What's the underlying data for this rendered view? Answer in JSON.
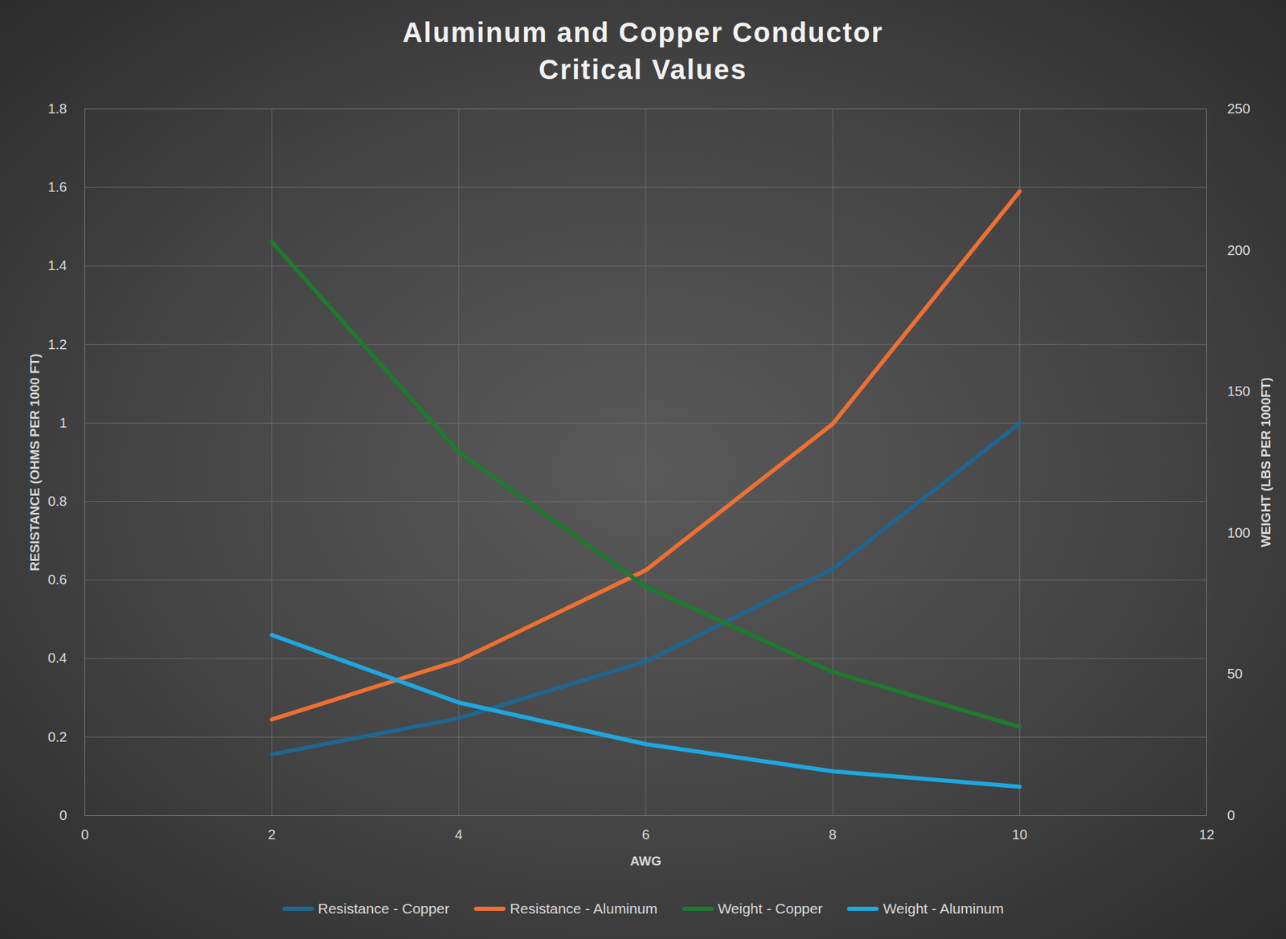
{
  "chart_data": {
    "type": "line",
    "title": "Aluminum and Copper Conductor\nCritical Values",
    "x": [
      2,
      4,
      6,
      8,
      10
    ],
    "xlim": [
      0,
      12
    ],
    "xticks": [
      0,
      2,
      4,
      6,
      8,
      10,
      12
    ],
    "xlabel": "AWG",
    "ylabel": "RESISTANCE (OHMS PER 1000 FT)",
    "ylim": [
      0,
      1.8
    ],
    "yticks": [
      0,
      0.2,
      0.4,
      0.6,
      0.8,
      1,
      1.2,
      1.4,
      1.6,
      1.8
    ],
    "y2label": "WEIGHT (LBS PER 1000FT)",
    "y2lim": [
      0,
      250
    ],
    "y2ticks": [
      0,
      50,
      100,
      150,
      200,
      250
    ],
    "grid": true,
    "legend": "bottom",
    "series": [
      {
        "name": "Resistance - Copper",
        "color": "#1f6690",
        "values": [
          0.156,
          0.248,
          0.393,
          0.628,
          0.999
        ]
      },
      {
        "name": "Resistance - Aluminum",
        "color": "#ed7032",
        "values": [
          0.245,
          0.395,
          0.625,
          0.998,
          1.59
        ]
      },
      {
        "name": "Weight - Copper",
        "color": "#1e7a2e",
        "values": [
          203,
          128.6,
          81,
          50.8,
          31.4
        ],
        "axis": "y2"
      },
      {
        "name": "Weight - Aluminum",
        "color": "#1ea7e0",
        "values": [
          63.9,
          40,
          25.3,
          15.7,
          10.2
        ],
        "axis": "y2"
      }
    ]
  }
}
